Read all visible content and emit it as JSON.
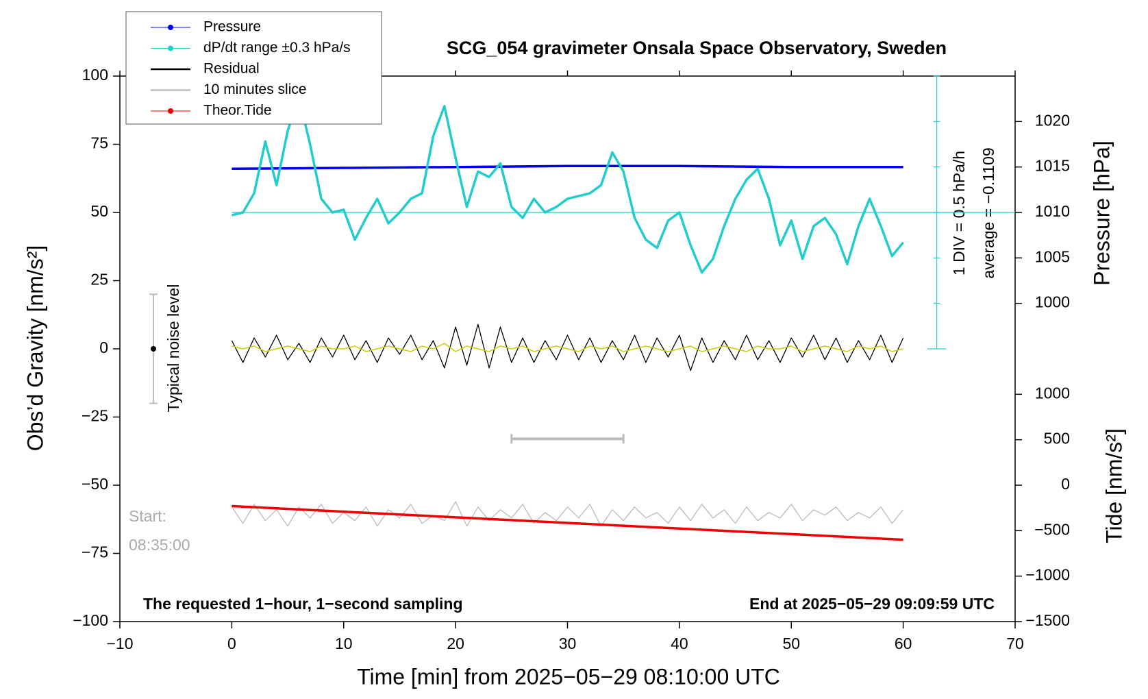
{
  "chart_data": {
    "type": "line",
    "title": "SCG_054 gravimeter Onsala Space Observatory, Sweden",
    "x_label": "Time [min] from 2025−05−29 08:10:00 UTC",
    "y_label": "Obs’d Gravity [nm/s²]",
    "y2_label": "Pressure [hPa]",
    "y3_label": "Tide [nm/s²]",
    "xlim": [
      -10,
      70
    ],
    "xticks": [
      {
        "value": -10,
        "label": "−10"
      },
      0,
      10,
      20,
      30,
      40,
      50,
      60,
      70
    ],
    "ylim": [
      -100,
      100
    ],
    "yticks": [
      {
        "value": -100,
        "label": "−100"
      },
      {
        "value": -75,
        "label": "−75"
      },
      {
        "value": -50,
        "label": "−50"
      },
      {
        "value": -25,
        "label": "−25"
      },
      0,
      25,
      50,
      75,
      100
    ],
    "y2lim": [
      965,
      1025
    ],
    "y2ticks": [
      1000,
      1005,
      1010,
      1015,
      1020
    ],
    "y3lim": [
      -1500,
      4500
    ],
    "y3ticks": [
      {
        "value": -1500,
        "label": "−1500"
      },
      {
        "value": -1000,
        "label": "−1000"
      },
      {
        "value": -500,
        "label": "−500"
      },
      0,
      500,
      1000
    ],
    "x": [
      0,
      1,
      2,
      3,
      4,
      5,
      6,
      7,
      8,
      9,
      10,
      11,
      12,
      13,
      14,
      15,
      16,
      17,
      18,
      19,
      20,
      21,
      22,
      23,
      24,
      25,
      26,
      27,
      28,
      29,
      30,
      31,
      32,
      33,
      34,
      35,
      36,
      37,
      38,
      39,
      40,
      41,
      42,
      43,
      44,
      45,
      46,
      47,
      48,
      49,
      50,
      51,
      52,
      53,
      54,
      55,
      56,
      57,
      58,
      59,
      60
    ],
    "series": [
      {
        "name": "Pressure",
        "color": "#0000ee",
        "axis": "y2",
        "marker": true,
        "x": [
          0,
          10,
          20,
          30,
          40,
          50,
          60
        ],
        "values": [
          1014.8,
          1014.9,
          1015.0,
          1015.1,
          1015.1,
          1015.0,
          1015.0
        ]
      },
      {
        "name": "dP/dt range ±0.3 hPa/s",
        "color": "#22cccc",
        "axis": "y",
        "marker": true,
        "baseline": 50,
        "values": [
          49,
          50,
          57,
          76,
          60,
          80,
          92,
          75,
          55,
          50,
          51,
          40,
          48,
          55,
          46,
          50,
          55,
          57,
          78,
          89,
          70,
          52,
          65,
          63,
          68,
          52,
          48,
          55,
          50,
          52,
          55,
          56,
          57,
          60,
          72,
          65,
          48,
          40,
          37,
          47,
          50,
          38,
          28,
          33,
          45,
          55,
          62,
          66,
          55,
          38,
          47,
          33,
          45,
          48,
          42,
          31,
          45,
          55,
          45,
          34,
          39
        ]
      },
      {
        "name": "Residual",
        "color": "#000000",
        "axis": "y",
        "values": [
          3,
          -5,
          4,
          -3,
          5,
          -4,
          2,
          -5,
          4,
          -3,
          5,
          -4,
          3,
          -5,
          4,
          -2,
          5,
          -4,
          3,
          -7,
          8,
          -6,
          9,
          -7,
          8,
          -5,
          4,
          -5,
          3,
          -4,
          5,
          -4,
          4,
          -5,
          3,
          -4,
          5,
          -5,
          4,
          -3,
          5,
          -8,
          4,
          -5,
          3,
          -4,
          5,
          -4,
          3,
          -5,
          4,
          -3,
          5,
          -4,
          4,
          -5,
          3,
          -4,
          5,
          -5,
          4
        ]
      },
      {
        "color": "#cccc00",
        "axis": "y",
        "values": [
          1,
          0,
          1,
          -1,
          0,
          1,
          0,
          -1,
          1,
          0,
          0,
          1,
          -1,
          0,
          1,
          0,
          -1,
          1,
          0,
          2,
          -1,
          1,
          0,
          -1,
          1,
          0,
          1,
          -1,
          0,
          1,
          0,
          -1,
          1,
          0,
          1,
          -1,
          0,
          1,
          0,
          -1,
          0,
          1,
          -1,
          0,
          1,
          0,
          -1,
          1,
          0,
          0,
          1,
          -1,
          0,
          1,
          0,
          -1,
          1,
          0,
          1,
          -1,
          0
        ]
      },
      {
        "name": "10 minutes slice",
        "color": "#bbbbbb",
        "axis": "y",
        "values": [
          -58,
          -64,
          -57,
          -63,
          -59,
          -65,
          -58,
          -62,
          -57,
          -64,
          -60,
          -63,
          -58,
          -65,
          -59,
          -62,
          -57,
          -64,
          -61,
          -63,
          -56,
          -65,
          -58,
          -63,
          -59,
          -62,
          -57,
          -64,
          -60,
          -63,
          -58,
          -62,
          -57,
          -65,
          -59,
          -63,
          -58,
          -62,
          -60,
          -64,
          -58,
          -63,
          -57,
          -62,
          -59,
          -64,
          -58,
          -63,
          -60,
          -62,
          -57,
          -63,
          -59,
          -61,
          -58,
          -63,
          -60,
          -62,
          -58,
          -64,
          -59
        ]
      },
      {
        "name": "Theor.Tide",
        "color": "#ee0000",
        "axis": "y3",
        "marker": true,
        "x": [
          0,
          60
        ],
        "values": [
          -230,
          -600
        ]
      }
    ],
    "interval": {
      "x": [
        25,
        35
      ],
      "value": -33
    },
    "noise": {
      "x": -7,
      "value": 0,
      "error": 20,
      "label": "Typical noise level"
    },
    "scale_note": "1 DIV = 0.5 hPa/h",
    "average_note": "average = −0.1109",
    "start_label": "Start:",
    "start_time": "08:35:00",
    "footer_left": "The requested 1−hour, 1−second sampling",
    "footer_right": "End at 2025−05−29 09:09:59 UTC"
  }
}
